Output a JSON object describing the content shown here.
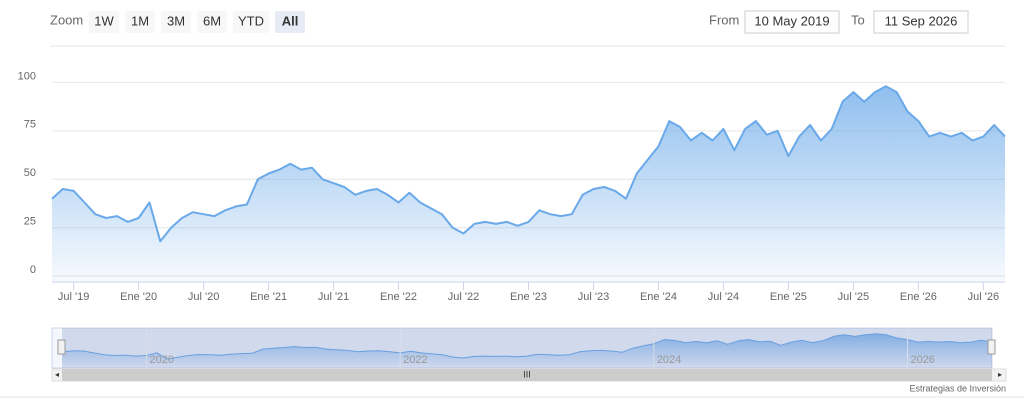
{
  "range_selector": {
    "zoom_label": "Zoom",
    "buttons": [
      "1W",
      "1M",
      "3M",
      "6M",
      "YTD",
      "All"
    ],
    "selected": 5,
    "from_label": "From",
    "from": "10 May 2019",
    "to_label": "To",
    "to": "11 Sep 2026"
  },
  "chart_data": {
    "type": "area",
    "x": [
      "2019-05",
      "2019-06",
      "2019-07",
      "2019-08",
      "2019-09",
      "2019-10",
      "2019-11",
      "2019-12",
      "2020-01",
      "2020-02",
      "2020-03",
      "2020-04",
      "2020-05",
      "2020-06",
      "2020-07",
      "2020-08",
      "2020-09",
      "2020-10",
      "2020-11",
      "2020-12",
      "2021-01",
      "2021-02",
      "2021-03",
      "2021-04",
      "2021-05",
      "2021-06",
      "2021-07",
      "2021-08",
      "2021-09",
      "2021-10",
      "2021-11",
      "2021-12",
      "2022-01",
      "2022-02",
      "2022-03",
      "2022-04",
      "2022-05",
      "2022-06",
      "2022-07",
      "2022-08",
      "2022-09",
      "2022-10",
      "2022-11",
      "2022-12",
      "2023-01",
      "2023-02",
      "2023-03",
      "2023-04",
      "2023-05",
      "2023-06",
      "2023-07",
      "2023-08",
      "2023-09",
      "2023-10",
      "2023-11",
      "2023-12",
      "2024-01",
      "2024-02",
      "2024-03",
      "2024-04",
      "2024-05",
      "2024-06",
      "2024-07",
      "2024-08",
      "2024-09",
      "2024-10",
      "2024-11",
      "2024-12",
      "2025-01",
      "2025-02",
      "2025-03",
      "2025-04",
      "2025-05",
      "2025-06",
      "2025-07",
      "2025-08",
      "2025-09",
      "2025-10",
      "2025-11",
      "2025-12",
      "2026-01",
      "2026-02",
      "2026-03",
      "2026-04",
      "2026-05",
      "2026-06",
      "2026-07",
      "2026-08",
      "2026-09"
    ],
    "values": [
      40,
      45,
      44,
      38,
      32,
      30,
      31,
      28,
      30,
      38,
      18,
      25,
      30,
      33,
      32,
      31,
      34,
      36,
      37,
      50,
      53,
      55,
      58,
      55,
      56,
      50,
      48,
      46,
      42,
      44,
      45,
      42,
      38,
      43,
      38,
      35,
      32,
      25,
      22,
      27,
      28,
      27,
      28,
      26,
      28,
      34,
      32,
      31,
      32,
      42,
      45,
      46,
      44,
      40,
      53,
      60,
      67,
      80,
      77,
      70,
      74,
      70,
      76,
      65,
      76,
      80,
      73,
      75,
      62,
      72,
      78,
      70,
      76,
      90,
      95,
      90,
      95,
      98,
      95,
      85,
      80,
      72,
      74,
      72,
      74,
      70,
      72,
      78,
      72
    ],
    "color": "#6aa9e9",
    "xlim": [
      "2019-05",
      "2026-09"
    ],
    "xticks": [
      {
        "value": "2019-07",
        "label": "Jul '19"
      },
      {
        "value": "2020-01",
        "label": "Ene '20"
      },
      {
        "value": "2020-07",
        "label": "Jul '20"
      },
      {
        "value": "2021-01",
        "label": "Ene '21"
      },
      {
        "value": "2021-07",
        "label": "Jul '21"
      },
      {
        "value": "2022-01",
        "label": "Ene '22"
      },
      {
        "value": "2022-07",
        "label": "Jul '22"
      },
      {
        "value": "2023-01",
        "label": "Ene '23"
      },
      {
        "value": "2023-07",
        "label": "Jul '23"
      },
      {
        "value": "2024-01",
        "label": "Ene '24"
      },
      {
        "value": "2024-07",
        "label": "Jul '24"
      },
      {
        "value": "2025-01",
        "label": "Ene '25"
      },
      {
        "value": "2025-07",
        "label": "Jul '25"
      },
      {
        "value": "2026-01",
        "label": "Ene '26"
      },
      {
        "value": "2026-07",
        "label": "Jul '26"
      }
    ],
    "ylim": [
      -3,
      110
    ],
    "yticks": [
      0,
      25,
      50,
      75,
      100
    ],
    "grid": true,
    "navigator_ticks": [
      {
        "value": "2020-01",
        "label": "2020"
      },
      {
        "value": "2022-01",
        "label": "2022"
      },
      {
        "value": "2024-01",
        "label": "2024"
      },
      {
        "value": "2026-01",
        "label": "2026"
      }
    ]
  },
  "credits": "Estrategias de Inversión"
}
